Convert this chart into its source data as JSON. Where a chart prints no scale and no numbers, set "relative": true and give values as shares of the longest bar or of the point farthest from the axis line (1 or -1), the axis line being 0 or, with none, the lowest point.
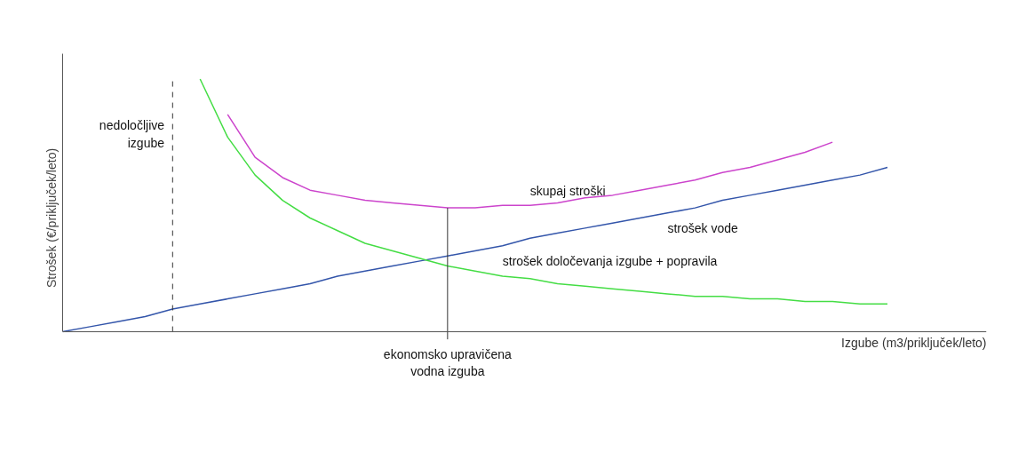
{
  "chart_data": {
    "type": "line",
    "relative": true,
    "xlabel": "Izgube (m3/priključek/leto)",
    "ylabel": "Strošek (€/priključek/leto)",
    "categories": [
      null,
      null,
      null,
      null,
      null,
      null,
      null,
      null,
      null,
      null,
      null,
      null,
      null,
      null,
      null,
      null,
      null,
      null,
      null,
      null,
      null,
      null,
      null,
      null,
      null,
      null,
      null,
      null,
      null,
      null,
      null
    ],
    "series": [
      {
        "name": "skupaj stroški",
        "color": "#cc44cc",
        "values": [
          null,
          null,
          null,
          null,
          null,
          null,
          0.86,
          0.69,
          0.61,
          0.56,
          0.54,
          0.52,
          0.51,
          0.5,
          0.49,
          0.49,
          0.5,
          0.5,
          0.51,
          0.53,
          0.54,
          0.56,
          0.58,
          0.6,
          0.63,
          0.65,
          0.68,
          0.71,
          0.75,
          null,
          null
        ]
      },
      {
        "name": "strošek vode",
        "color": "#3355aa",
        "values": [
          0,
          0.02,
          0.04,
          0.06,
          0.09,
          0.11,
          0.13,
          0.15,
          0.17,
          0.19,
          0.22,
          0.24,
          0.26,
          0.28,
          0.3,
          0.32,
          0.34,
          0.37,
          0.39,
          0.41,
          0.43,
          0.45,
          0.47,
          0.49,
          0.52,
          0.54,
          0.56,
          0.58,
          0.6,
          0.62,
          0.65
        ]
      },
      {
        "name": "strošek določevanja izgube + popravila",
        "color": "#44dd44",
        "values": [
          null,
          null,
          null,
          null,
          null,
          1.0,
          0.77,
          0.62,
          0.52,
          0.45,
          0.4,
          0.35,
          0.32,
          0.29,
          0.26,
          0.24,
          0.22,
          0.21,
          0.19,
          0.18,
          0.17,
          0.16,
          0.15,
          0.14,
          0.14,
          0.13,
          0.13,
          0.12,
          0.12,
          0.11,
          0.11
        ]
      }
    ],
    "annotations": [
      "nedoločljive\nizgube",
      "ekonomsko upravičena\nvodna izguba"
    ],
    "grid": false,
    "legend": false,
    "line_style": "solid",
    "marker": "none"
  }
}
